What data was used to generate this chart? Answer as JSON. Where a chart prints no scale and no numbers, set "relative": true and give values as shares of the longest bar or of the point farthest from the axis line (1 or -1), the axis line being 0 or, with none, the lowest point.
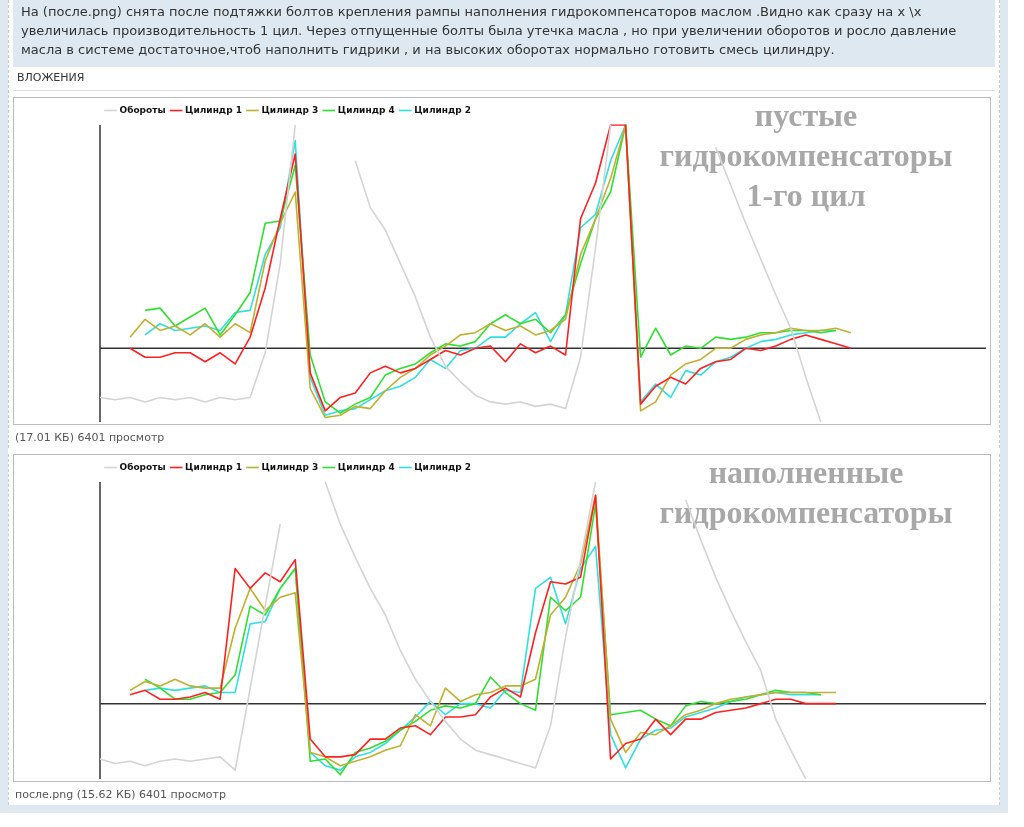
{
  "chart_data": [
    {
      "type": "line",
      "title": "На (после.png) снята после подтяжки болтов крепления рампы наполнения гидрокомпенсаторов маслом .Видно как сразу на х \\х увеличилась производительность 1 цил. Через отпущенные болты была утечка масла , но при увеличении оборотов и росло давление масла в системе достаточное,чтоб наполнить гидрики , и на высоких оборотах нормально готовить смесь цилиндру.",
      "subtitle": "ВЛОЖЕНИЯ",
      "relative": true,
      "marker": "none",
      "legend": "top left",
      "annotations": [
        "пустые гидрокомпенсаторы 1-го цил",
        "(17.01 КБ) 6401 просмотр"
      ],
      "categories": [
        null,
        null,
        null,
        null,
        null,
        null,
        null,
        null,
        null,
        null,
        null,
        null,
        null,
        null,
        null,
        null,
        null,
        null,
        null,
        null,
        null,
        null,
        null,
        null,
        null,
        null,
        null,
        null,
        null,
        null,
        null,
        null,
        null,
        null,
        null,
        null,
        null,
        null,
        null,
        null,
        null,
        null,
        null,
        null,
        null,
        null,
        null,
        null,
        null,
        null,
        null,
        null,
        null,
        null,
        null,
        null,
        null,
        null,
        null,
        null
      ],
      "series": [
        {
          "name": "Обороты",
          "color": "#d4d4d4",
          "values": [
            -0.22,
            -0.23,
            -0.22,
            -0.24,
            -0.22,
            -0.23,
            -0.22,
            -0.24,
            -0.22,
            -0.23,
            -0.22,
            -0.02,
            0.38,
            1,
            null,
            null,
            null,
            0.84,
            0.63,
            0.53,
            0.38,
            0.23,
            0.05,
            -0.08,
            -0.15,
            -0.21,
            -0.24,
            -0.25,
            -0.24,
            -0.26,
            -0.25,
            -0.27,
            -0.04,
            0.45,
            1,
            null,
            null,
            null,
            null,
            null,
            null,
            0.9,
            0.73,
            0.56,
            0.4,
            0.24,
            0.09,
            -0.13,
            -0.33,
            null,
            null,
            null,
            null,
            null,
            null,
            null,
            null,
            null,
            null,
            null
          ]
        },
        {
          "name": "Цилиндр 1",
          "color": "#ff2020",
          "values": [
            null,
            null,
            0,
            -0.04,
            -0.04,
            -0.02,
            -0.02,
            -0.06,
            -0.02,
            -0.07,
            0.05,
            0.27,
            0.58,
            0.87,
            -0.11,
            -0.28,
            -0.22,
            -0.2,
            -0.11,
            -0.08,
            -0.11,
            -0.09,
            -0.05,
            -0.01,
            -0.03,
            0,
            0.01,
            -0.06,
            0.02,
            -0.02,
            0.01,
            -0.03,
            0.58,
            0.74,
            1,
            1,
            -0.25,
            -0.17,
            -0.13,
            -0.16,
            -0.09,
            -0.06,
            -0.05,
            0,
            -0.01,
            0.01,
            0.04,
            0.06,
            0.04,
            0.02,
            0,
            null,
            null,
            null,
            null,
            null,
            null,
            null,
            null,
            null
          ]
        },
        {
          "name": "Цилиндр 3",
          "color": "#c0b030",
          "values": [
            null,
            null,
            0.05,
            0.13,
            0.08,
            0.1,
            0.06,
            0.11,
            0.05,
            0.11,
            0.07,
            0.39,
            0.56,
            0.7,
            -0.18,
            -0.31,
            -0.3,
            -0.26,
            -0.27,
            -0.19,
            -0.13,
            -0.09,
            -0.03,
            0.01,
            0.06,
            0.07,
            0.11,
            0.08,
            0.1,
            0.06,
            0.08,
            0.13,
            0.42,
            0.58,
            0.76,
            1,
            -0.28,
            -0.24,
            -0.12,
            -0.07,
            -0.05,
            0,
            0,
            0.04,
            0.06,
            0.07,
            0.09,
            0.08,
            0.08,
            0.09,
            0.07,
            null,
            null,
            null,
            null,
            null,
            null,
            null,
            null,
            null
          ]
        },
        {
          "name": "Цилиндр 4",
          "color": "#30e030",
          "values": [
            null,
            null,
            null,
            0.17,
            0.18,
            0.1,
            0.14,
            0.18,
            0.06,
            0.15,
            0.25,
            0.56,
            0.57,
            0.82,
            -0.03,
            -0.24,
            -0.29,
            -0.25,
            -0.22,
            -0.12,
            -0.09,
            -0.07,
            -0.02,
            0.02,
            0.01,
            0.03,
            0.11,
            0.15,
            0.11,
            0.13,
            0.07,
            0.15,
            0.38,
            0.58,
            0.7,
            1,
            -0.04,
            0.09,
            -0.03,
            0.01,
            0,
            0.05,
            0.04,
            0.05,
            0.07,
            0.07,
            0.08,
            0.08,
            0.07,
            0.08,
            null,
            null,
            null,
            null,
            null,
            null,
            null,
            null,
            null,
            null
          ]
        },
        {
          "name": "Цилиндр 2",
          "color": "#30e0e0",
          "values": [
            null,
            null,
            null,
            0.06,
            0.11,
            0.08,
            0.09,
            0.1,
            0.08,
            0.16,
            0.17,
            0.42,
            0.54,
            0.93,
            -0.13,
            -0.3,
            -0.28,
            -0.27,
            -0.23,
            -0.19,
            -0.17,
            -0.13,
            -0.05,
            -0.09,
            -0.01,
            0,
            0.05,
            0.05,
            0.11,
            0.16,
            0.03,
            0.15,
            0.54,
            0.6,
            0.84,
            1,
            -0.24,
            -0.16,
            -0.22,
            -0.1,
            -0.12,
            -0.06,
            -0.04,
            0,
            0.03,
            0.04,
            0.06,
            0.07,
            0.08,
            0.08,
            null,
            null,
            null,
            null,
            null,
            null,
            null,
            null,
            null,
            null
          ]
        }
      ]
    },
    {
      "type": "line",
      "relative": true,
      "marker": "none",
      "legend": "top left",
      "annotations": [
        "наполненные гидрокомпенсаторы",
        "после.png (15.62 КБ) 6401 просмотр"
      ],
      "categories": [
        null,
        null,
        null,
        null,
        null,
        null,
        null,
        null,
        null,
        null,
        null,
        null,
        null,
        null,
        null,
        null,
        null,
        null,
        null,
        null,
        null,
        null,
        null,
        null,
        null,
        null,
        null,
        null,
        null,
        null,
        null,
        null,
        null,
        null,
        null,
        null,
        null,
        null,
        null,
        null,
        null,
        null,
        null,
        null,
        null,
        null,
        null,
        null,
        null,
        null,
        null,
        null,
        null,
        null,
        null,
        null,
        null,
        null,
        null,
        null
      ],
      "series": [
        {
          "name": "Обороты",
          "color": "#d4d4d4",
          "values": [
            -0.25,
            -0.27,
            -0.26,
            -0.28,
            -0.26,
            -0.25,
            -0.26,
            -0.25,
            -0.24,
            -0.3,
            0.07,
            0.44,
            0.81,
            null,
            null,
            1,
            0.81,
            0.66,
            0.52,
            0.4,
            0.24,
            0.11,
            0.01,
            -0.08,
            -0.16,
            -0.21,
            -0.23,
            -0.25,
            -0.27,
            -0.29,
            -0.1,
            0.3,
            0.65,
            1,
            null,
            null,
            null,
            null,
            null,
            0.92,
            0.74,
            0.57,
            0.42,
            0.28,
            0.15,
            -0.07,
            -0.21,
            -0.34,
            null,
            null,
            null,
            null,
            null,
            null,
            null,
            null,
            null,
            null,
            null,
            null
          ]
        },
        {
          "name": "Цилиндр 1",
          "color": "#ff2020",
          "values": [
            null,
            null,
            0.04,
            0.06,
            0.02,
            0.02,
            0.03,
            0.05,
            0.02,
            0.61,
            0.52,
            0.59,
            0.55,
            0.65,
            -0.16,
            -0.24,
            -0.24,
            -0.23,
            -0.16,
            -0.16,
            -0.11,
            -0.1,
            -0.14,
            -0.06,
            -0.06,
            -0.05,
            0.03,
            0.07,
            0.03,
            0.32,
            0.55,
            0.54,
            0.57,
            0.94,
            -0.25,
            -0.18,
            -0.16,
            -0.07,
            -0.14,
            -0.07,
            -0.07,
            -0.04,
            -0.03,
            -0.02,
            0,
            0.02,
            0.02,
            0,
            0,
            0,
            null,
            null,
            null,
            null,
            null,
            null,
            null,
            null,
            null,
            null
          ]
        },
        {
          "name": "Цилиндр 3",
          "color": "#c0b030",
          "values": [
            null,
            null,
            0.06,
            0.1,
            0.08,
            0.11,
            0.08,
            0.07,
            0.07,
            0.34,
            0.52,
            0.42,
            0.48,
            0.5,
            -0.22,
            -0.24,
            -0.28,
            -0.26,
            -0.24,
            -0.21,
            -0.19,
            -0.05,
            -0.1,
            0.07,
            0.01,
            0.04,
            0.05,
            0.08,
            0.08,
            0.11,
            0.4,
            0.48,
            0.63,
            0.94,
            -0.07,
            -0.22,
            -0.13,
            -0.14,
            -0.1,
            -0.05,
            -0.03,
            0,
            0.02,
            0.03,
            0.04,
            0.05,
            0.05,
            0.05,
            0.05,
            0.05,
            null,
            null,
            null,
            null,
            null,
            null,
            null,
            null,
            null,
            null
          ]
        },
        {
          "name": "Цилиндр 4",
          "color": "#30e030",
          "values": [
            null,
            null,
            null,
            0.11,
            0.07,
            0.02,
            0.02,
            0.04,
            0.05,
            0.13,
            0.44,
            0.4,
            0.52,
            0.61,
            -0.26,
            -0.25,
            -0.32,
            -0.22,
            -0.2,
            -0.17,
            -0.12,
            -0.08,
            -0.03,
            -0.01,
            -0.02,
            0,
            0.12,
            0.05,
            0,
            -0.03,
            0.48,
            0.42,
            0.48,
            0.9,
            -0.05,
            -0.04,
            -0.03,
            -0.07,
            -0.1,
            -0.01,
            0.01,
            0,
            0.01,
            0.02,
            0.04,
            0.06,
            0.05,
            0.05,
            0.04,
            null,
            null,
            null,
            null,
            null,
            null,
            null,
            null,
            null,
            null,
            null
          ]
        },
        {
          "name": "Цилиндр 2",
          "color": "#30e0e0",
          "values": [
            null,
            null,
            null,
            0.06,
            0.07,
            0.06,
            0.07,
            0.08,
            0.05,
            0.05,
            0.36,
            0.37,
            0.52,
            0.61,
            -0.22,
            -0.28,
            -0.3,
            -0.24,
            -0.22,
            -0.18,
            -0.12,
            -0.06,
            0.01,
            -0.05,
            0,
            0,
            -0.02,
            0.06,
            0.05,
            0.52,
            0.57,
            0.36,
            0.61,
            0.71,
            -0.14,
            -0.29,
            -0.16,
            -0.12,
            -0.11,
            -0.06,
            -0.04,
            -0.02,
            0.01,
            0.03,
            0.04,
            0.05,
            0.04,
            0.04,
            0.04,
            null,
            null,
            null,
            null,
            null,
            null,
            null,
            null,
            null,
            null,
            null
          ]
        }
      ]
    }
  ]
}
